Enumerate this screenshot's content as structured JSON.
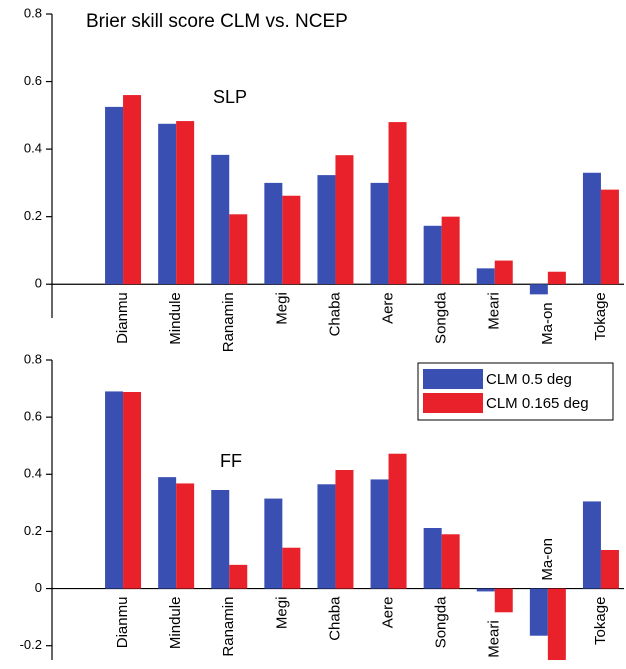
{
  "chart_data": [
    {
      "type": "bar",
      "title": "Brier skill score CLM vs. NCEP",
      "label": "SLP",
      "categories": [
        "Dianmu",
        "Mindule",
        "Ranamin",
        "Megi",
        "Chaba",
        "Aere",
        "Songda",
        "Meari",
        "Ma-on",
        "Tokage"
      ],
      "series": [
        {
          "name": "CLM 0.5 deg",
          "color": "#3a4fb2",
          "values": [
            0.525,
            0.475,
            0.383,
            0.3,
            0.323,
            0.3,
            0.173,
            0.047,
            -0.03,
            0.33
          ]
        },
        {
          "name": "CLM 0.165 deg",
          "color": "#e8212a",
          "values": [
            0.56,
            0.483,
            0.207,
            0.262,
            0.382,
            0.48,
            0.2,
            0.07,
            0.037,
            0.28
          ]
        }
      ],
      "ylim": [
        -0.1,
        0.8
      ],
      "yticks": [
        0,
        0.2,
        0.4,
        0.6,
        0.8
      ]
    },
    {
      "type": "bar",
      "label": "FF",
      "categories": [
        "Dianmu",
        "Mindule",
        "Ranamin",
        "Megi",
        "Chaba",
        "Aere",
        "Songda",
        "Meari",
        "Ma-on",
        "Tokage"
      ],
      "series": [
        {
          "name": "CLM 0.5 deg",
          "color": "#3a4fb2",
          "values": [
            0.69,
            0.39,
            0.345,
            0.315,
            0.365,
            0.382,
            0.212,
            -0.01,
            -0.165,
            0.305
          ]
        },
        {
          "name": "CLM 0.165 deg",
          "color": "#e8212a",
          "values": [
            0.688,
            0.368,
            0.083,
            0.143,
            0.415,
            0.472,
            0.19,
            -0.083,
            -0.25,
            0.135
          ]
        }
      ],
      "ylim": [
        -0.25,
        0.8
      ],
      "yticks": [
        -0.2,
        0,
        0.2,
        0.4,
        0.6,
        0.8
      ],
      "legend": "upper right"
    }
  ]
}
